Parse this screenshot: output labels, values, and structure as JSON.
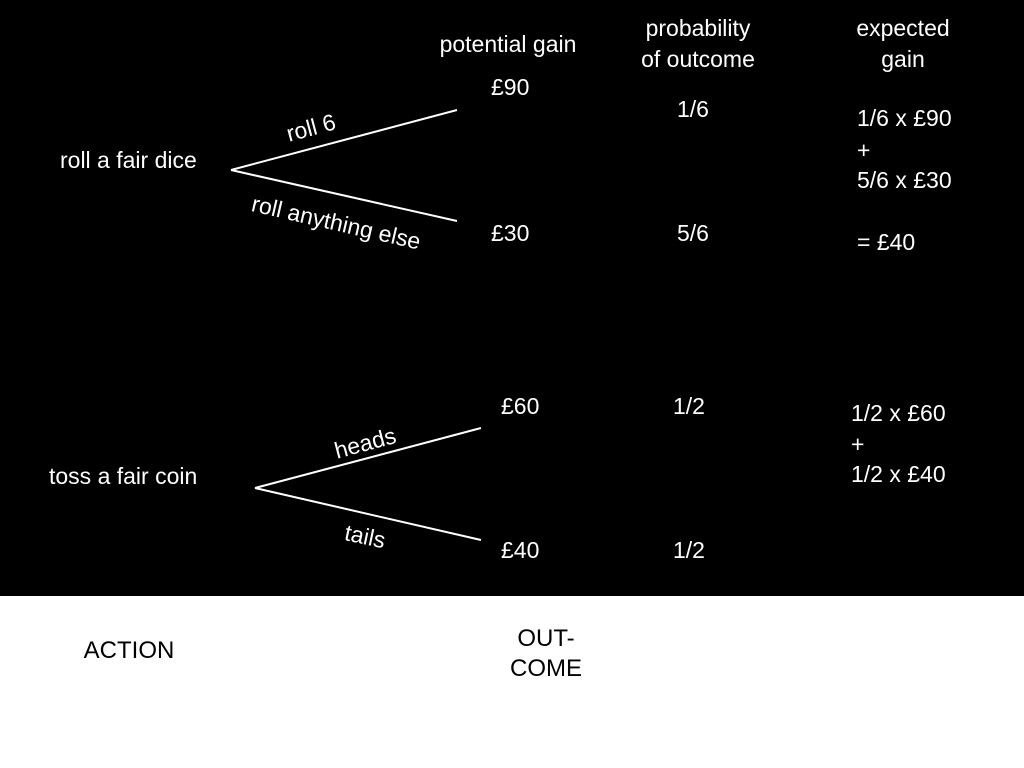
{
  "headers": {
    "potential_gain": "potential gain",
    "probability_line1": "probability",
    "probability_line2": "of outcome",
    "expected_line1": "expected",
    "expected_line2": "gain"
  },
  "dice": {
    "action": "roll a fair dice",
    "branch_top": "roll 6",
    "branch_bottom": "roll anything else",
    "gain_top": "£90",
    "gain_bottom": "£30",
    "prob_top": "1/6",
    "prob_bottom": "5/6",
    "expected_line1": "1/6 x £90",
    "expected_line2": "+",
    "expected_line3": "5/6 x £30",
    "expected_result": "= £40"
  },
  "coin": {
    "action": "toss a fair coin",
    "branch_top": "heads",
    "branch_bottom": "tails",
    "gain_top": "£60",
    "gain_bottom": "£40",
    "prob_top": "1/2",
    "prob_bottom": "1/2",
    "expected_line1": "1/2 x £60",
    "expected_line2": "+",
    "expected_line3": "1/2 x £40"
  },
  "footer": {
    "action_label": "ACTION",
    "outcome_line1": "OUT-",
    "outcome_line2": "COME"
  },
  "colors": {
    "board": "#000000",
    "text_on_board": "#ffffff",
    "footer_bg": "#ffffff",
    "footer_text": "#000000"
  }
}
